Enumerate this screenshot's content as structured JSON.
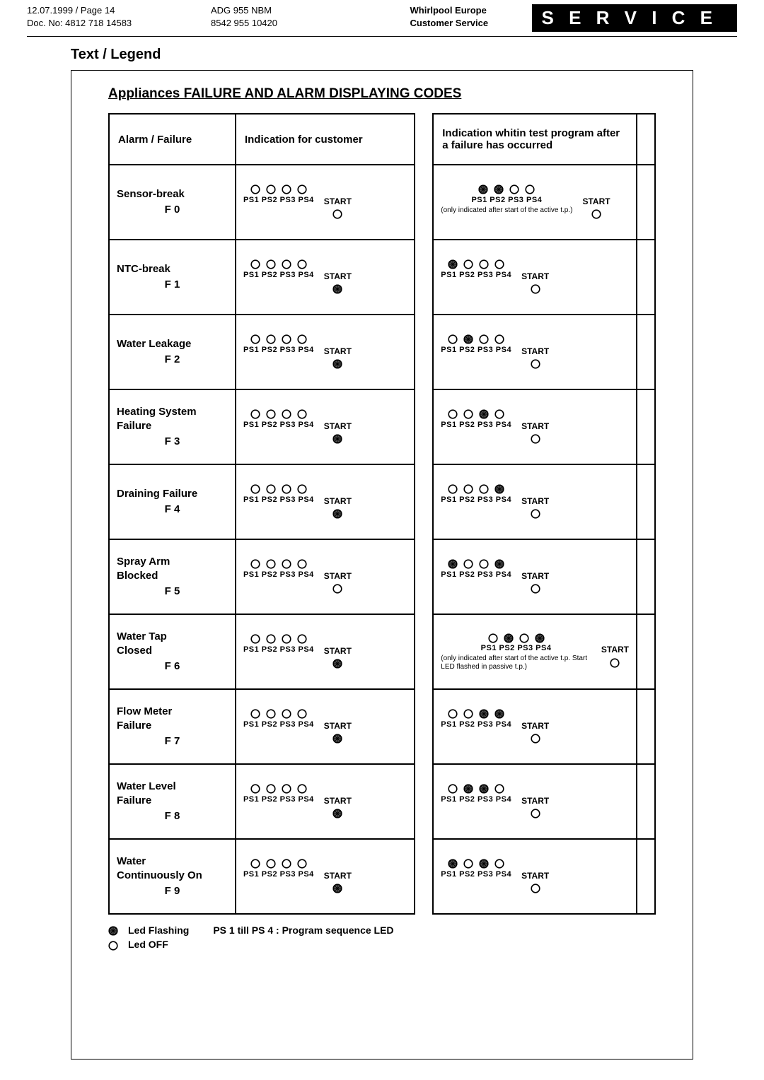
{
  "header": {
    "date_page": "12.07.1999 / Page 14",
    "doc_no": "Doc. No: 4812 718 14583",
    "model": "ADG 955 NBM",
    "code": "8542 955 10420",
    "brand": "Whirlpool Europe",
    "dept": "Customer Service",
    "service": "S E R V I C E"
  },
  "section_title": "Text / Legend",
  "table_title": "Appliances FAILURE AND ALARM DISPLAYING CODES",
  "columns": {
    "alarm": "Alarm / Failure",
    "customer": "Indication for customer",
    "test": "Indication whitin test program after a failure has occurred"
  },
  "ps_labels": "PS1 PS2 PS3 PS4",
  "start_label": "START",
  "rows": [
    {
      "name": "Sensor-break",
      "code": "F 0",
      "cust": {
        "ps": [
          "off",
          "off",
          "off",
          "off"
        ],
        "start": "off"
      },
      "test": {
        "ps": [
          "flash",
          "flash",
          "off",
          "off"
        ],
        "start": "off",
        "note": "(only indicated after start of the active t.p.)"
      }
    },
    {
      "name": "NTC-break",
      "code": "F 1",
      "cust": {
        "ps": [
          "off",
          "off",
          "off",
          "off"
        ],
        "start": "flash"
      },
      "test": {
        "ps": [
          "flash",
          "off",
          "off",
          "off"
        ],
        "start": "off"
      }
    },
    {
      "name": "Water Leakage",
      "code": "F 2",
      "cust": {
        "ps": [
          "off",
          "off",
          "off",
          "off"
        ],
        "start": "flash"
      },
      "test": {
        "ps": [
          "off",
          "flash",
          "off",
          "off"
        ],
        "start": "off"
      }
    },
    {
      "name": "Heating System Failure",
      "code": "F 3",
      "cust": {
        "ps": [
          "off",
          "off",
          "off",
          "off"
        ],
        "start": "flash"
      },
      "test": {
        "ps": [
          "off",
          "off",
          "flash",
          "off"
        ],
        "start": "off"
      }
    },
    {
      "name": "Draining Failure",
      "code": "F 4",
      "cust": {
        "ps": [
          "off",
          "off",
          "off",
          "off"
        ],
        "start": "flash"
      },
      "test": {
        "ps": [
          "off",
          "off",
          "off",
          "flash"
        ],
        "start": "off"
      }
    },
    {
      "name": "Spray Arm Blocked",
      "code": "F 5",
      "cust": {
        "ps": [
          "off",
          "off",
          "off",
          "off"
        ],
        "start": "off"
      },
      "test": {
        "ps": [
          "flash",
          "off",
          "off",
          "flash"
        ],
        "start": "off"
      }
    },
    {
      "name": "Water Tap Closed",
      "code": "F 6",
      "cust": {
        "ps": [
          "off",
          "off",
          "off",
          "off"
        ],
        "start": "flash"
      },
      "test": {
        "ps": [
          "off",
          "flash",
          "off",
          "flash"
        ],
        "start": "off",
        "note": "(only indicated after start of the active t.p. Start LED flashed in passive t.p.)"
      }
    },
    {
      "name": "Flow Meter Failure",
      "code": "F 7",
      "cust": {
        "ps": [
          "off",
          "off",
          "off",
          "off"
        ],
        "start": "flash"
      },
      "test": {
        "ps": [
          "off",
          "off",
          "flash",
          "flash"
        ],
        "start": "off"
      }
    },
    {
      "name": "Water Level Failure",
      "code": "F 8",
      "cust": {
        "ps": [
          "off",
          "off",
          "off",
          "off"
        ],
        "start": "flash"
      },
      "test": {
        "ps": [
          "off",
          "flash",
          "flash",
          "off"
        ],
        "start": "off"
      }
    },
    {
      "name": "Water Continuously On",
      "code": "F 9",
      "cust": {
        "ps": [
          "off",
          "off",
          "off",
          "off"
        ],
        "start": "flash"
      },
      "test": {
        "ps": [
          "flash",
          "off",
          "flash",
          "off"
        ],
        "start": "off"
      }
    }
  ],
  "legend": {
    "flash": "Led Flashing",
    "off": "Led OFF",
    "ps_note": "PS 1 till PS 4 : Program sequence LED"
  },
  "led_svg": {
    "size": 14,
    "stroke": 1.6,
    "color": "#000000",
    "flash_fill": "#000000",
    "off_fill": "none"
  }
}
